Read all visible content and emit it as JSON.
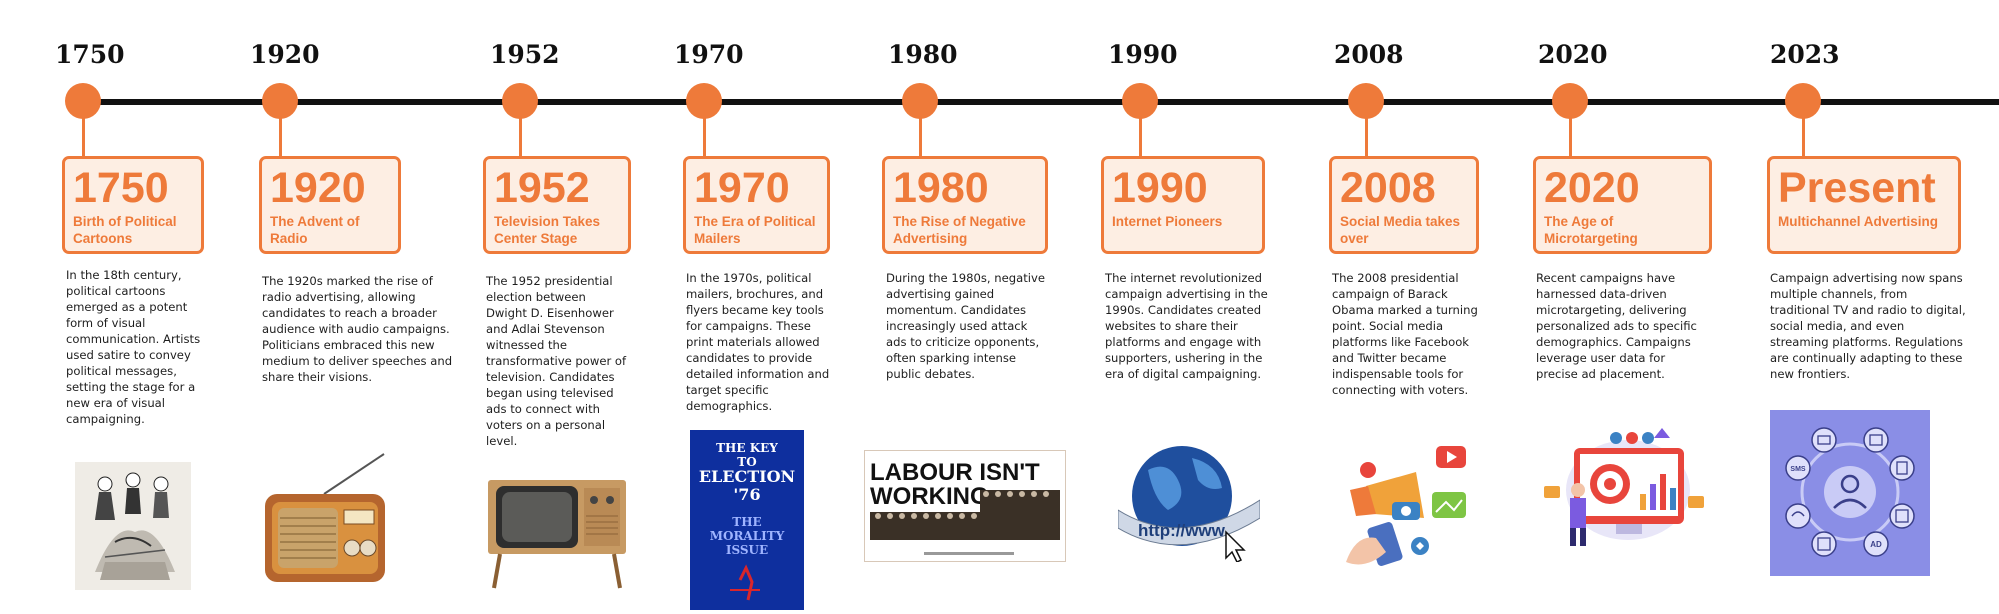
{
  "colors": {
    "accent": "#ee7a3a",
    "card_fill": "#fdeee3",
    "line": "#111111"
  },
  "eras": [
    {
      "top_year": "1750",
      "year": "1750",
      "subtitle": "Birth of Political Cartoons",
      "description": "In the 18th century, political cartoons emerged as a potent form of visual communication. Artists used satire to convey political messages, setting the stage for a new era of visual campaigning.",
      "image": "political-cartoon-illustration"
    },
    {
      "top_year": "1920",
      "year": "1920",
      "subtitle": "The Advent of Radio",
      "description": "The 1920s marked the rise of radio advertising, allowing candidates to reach a broader audience with audio campaigns. Politicians embraced this new medium to deliver speeches and share their visions.",
      "image": "vintage-radio"
    },
    {
      "top_year": "1952",
      "year": "1952",
      "subtitle": "Television Takes Center Stage",
      "description": "The 1952 presidential election between Dwight D. Eisenhower and Adlai Stevenson witnessed the transformative power of television. Candidates began using televised ads to connect with voters on a personal level.",
      "image": "vintage-television"
    },
    {
      "top_year": "1970",
      "year": "1970",
      "subtitle": "The Era of Political Mailers",
      "description": "In the 1970s, political mailers, brochures, and flyers became key tools for campaigns. These print materials allowed candidates to provide detailed information and target specific demographics.",
      "image": "election-mailer",
      "image_text": {
        "line1": "THE KEY",
        "line2": "TO",
        "line3": "ELECTION",
        "line4": "'76",
        "line5": "THE",
        "line6": "MORALITY",
        "line7": "ISSUE"
      }
    },
    {
      "top_year": "1980",
      "year": "1980",
      "subtitle": "The Rise of Negative Advertising",
      "description": "During the 1980s, negative advertising gained momentum. Candidates increasingly used attack ads to criticize opponents, often sparking intense public debates.",
      "image": "labour-poster",
      "image_text": {
        "line1": "LABOUR ISN'T",
        "line2": "WORKING."
      }
    },
    {
      "top_year": "1990",
      "year": "1990",
      "subtitle": "Internet Pioneers",
      "description": "The internet revolutionized campaign advertising in the 1990s. Candidates created websites to share their platforms and engage with supporters, ushering in the era of digital campaigning.",
      "image": "globe-www",
      "image_text": "http://www."
    },
    {
      "top_year": "2008",
      "year": "2008",
      "subtitle": "Social Media takes over",
      "description": "The 2008 presidential campaign of Barack Obama marked a turning point. Social media platforms like Facebook and Twitter became indispensable tools for connecting with voters.",
      "image": "social-media-megaphone"
    },
    {
      "top_year": "2020",
      "year": "2020",
      "subtitle": "The Age of Microtargeting",
      "description": "Recent campaigns have harnessed data-driven microtargeting, delivering personalized ads to specific demographics. Campaigns leverage user data for precise ad placement.",
      "image": "microtargeting-dashboard"
    },
    {
      "top_year": "2023",
      "year": "Present",
      "subtitle": "Multichannel Advertising",
      "description": "Campaign advertising now spans multiple channels, from traditional TV and radio to digital, social media, and even streaming platforms. Regulations are continually adapting to these new frontiers.",
      "image": "multichannel-hub",
      "image_text": {
        "sms": "SMS",
        "ad": "AD"
      }
    }
  ]
}
